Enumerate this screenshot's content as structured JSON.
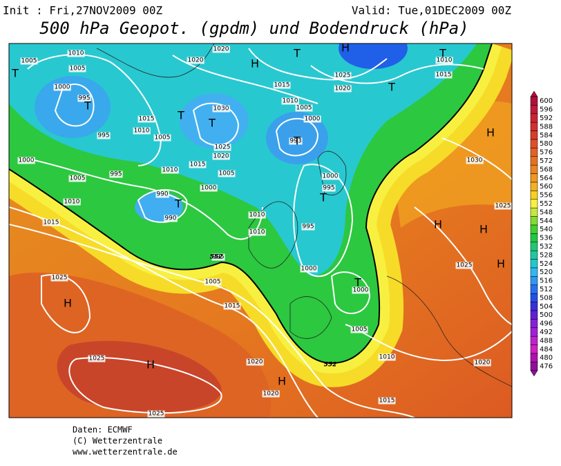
{
  "header": {
    "init": "Init : Fri,27NOV2009 00Z",
    "valid": "Valid: Tue,01DEC2009 00Z",
    "title": "500 hPa Geopot. (gpdm) und Bodendruck (hPa)"
  },
  "legend": {
    "levels": [
      600,
      596,
      592,
      588,
      584,
      580,
      576,
      572,
      568,
      564,
      560,
      556,
      552,
      548,
      544,
      540,
      536,
      532,
      528,
      524,
      520,
      516,
      512,
      508,
      504,
      500,
      496,
      492,
      488,
      484,
      480,
      476
    ]
  },
  "pressure_labels": [
    1005,
    1010,
    1005,
    1000,
    995,
    1015,
    1010,
    995,
    1005,
    1020,
    1020,
    1015,
    1010,
    1005,
    1000,
    1030,
    1025,
    1020,
    1015,
    1010,
    1005,
    1000,
    995,
    990,
    990,
    1000,
    1005,
    1010,
    1015,
    1010,
    1010,
    995,
    1005,
    1015,
    1025,
    1025,
    1025,
    1020,
    1020,
    1000,
    995,
    995,
    1000,
    1000,
    1005,
    1010,
    1015,
    1020,
    1025,
    1025,
    1030,
    1025,
    1020,
    1015,
    1010,
    993
  ],
  "height_labels": [
    552,
    552
  ],
  "centers": [
    "T",
    "T",
    "T",
    "T",
    "T",
    "T",
    "H",
    "T",
    "T",
    "H",
    "T",
    "T",
    "H",
    "H",
    "H",
    "H",
    "H",
    "H",
    "T",
    "H"
  ],
  "footer": [
    "Daten: ECMWF",
    "(C) Wetterzentrale",
    "www.wetterzentrale.de"
  ]
}
